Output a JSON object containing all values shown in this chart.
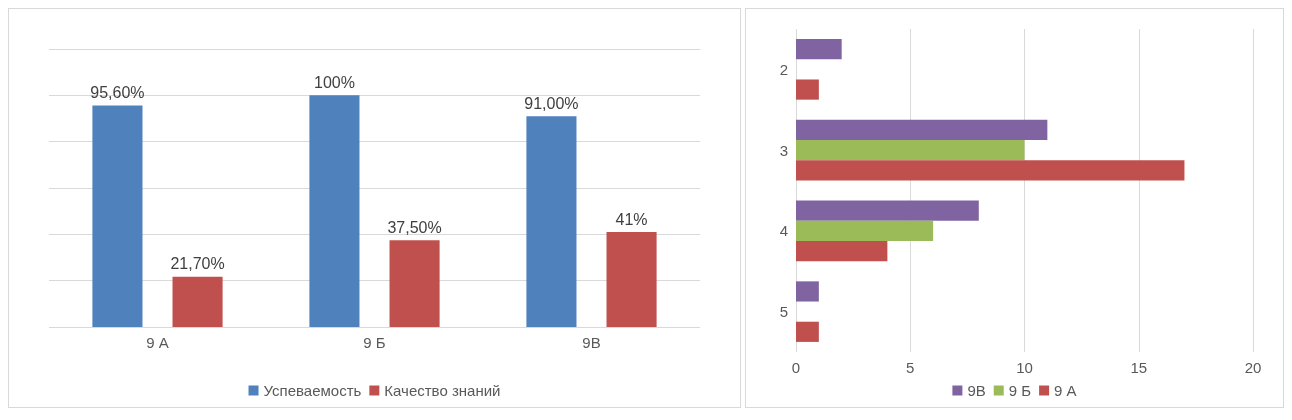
{
  "chart_data": [
    {
      "type": "bar",
      "categories": [
        "9 А",
        "9 Б",
        "9В"
      ],
      "series": [
        {
          "name": "Успеваемость",
          "color": "#4f81bd",
          "values": [
            95.6,
            100,
            91
          ],
          "value_labels": [
            "95,60%",
            "100%",
            "91,00%"
          ]
        },
        {
          "name": "Качество знаний",
          "color": "#c0504d",
          "values": [
            21.7,
            37.5,
            41
          ],
          "value_labels": [
            "21,70%",
            "37,50%",
            "41%"
          ]
        }
      ],
      "ylim": [
        0,
        120
      ],
      "tick_labels": "x",
      "grid": "y",
      "legend": "bottom"
    },
    {
      "type": "bar",
      "orientation": "horizontal",
      "categories": [
        "2",
        "3",
        "4",
        "5"
      ],
      "series": [
        {
          "name": "9В",
          "color": "#8064a2",
          "values": [
            2,
            11,
            8,
            1
          ]
        },
        {
          "name": "9 Б",
          "color": "#9bbb59",
          "values": [
            null,
            10,
            6,
            null
          ]
        },
        {
          "name": "9 А",
          "color": "#c0504d",
          "values": [
            1,
            17,
            4,
            1
          ]
        }
      ],
      "xlim": [
        0,
        20
      ],
      "xticks": [
        0,
        5,
        10,
        15,
        20
      ],
      "grid": "x",
      "legend": "bottom"
    }
  ]
}
